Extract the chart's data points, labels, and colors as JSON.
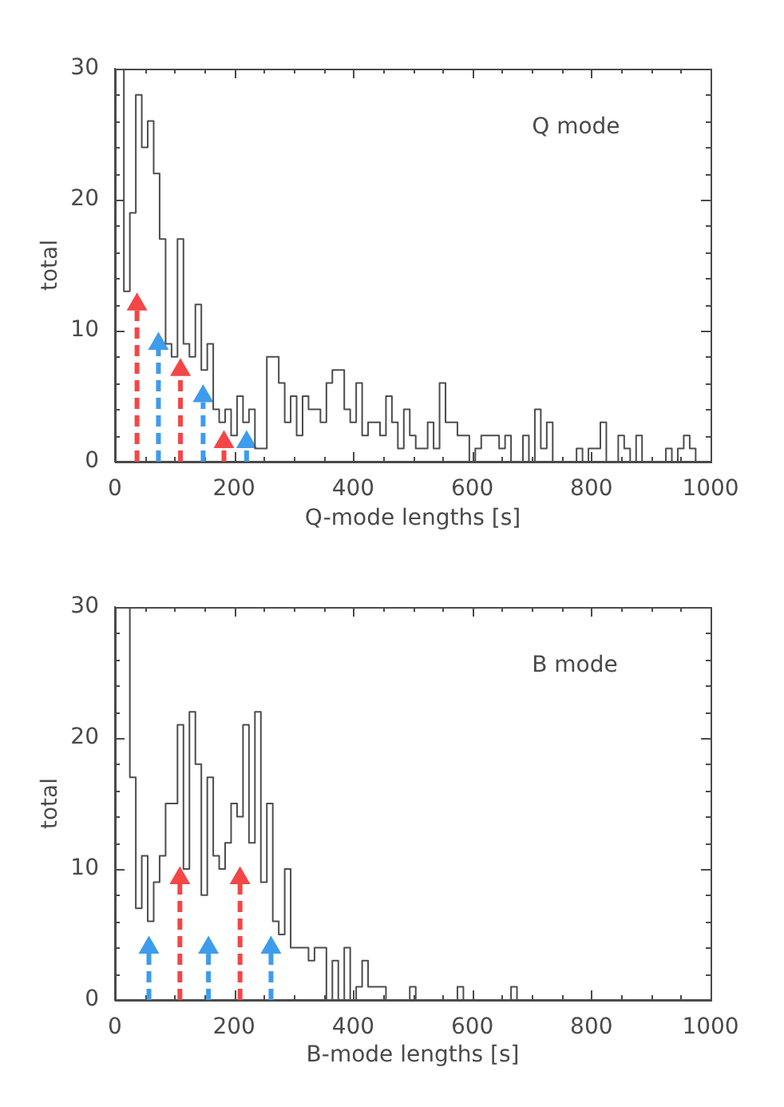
{
  "chart_data": [
    {
      "type": "step",
      "xlabel": "Q-mode lengths [s]",
      "ylabel": "total",
      "annotations": [
        "Q mode"
      ],
      "color": "#4d4d4d",
      "x": [
        10,
        20,
        30,
        40,
        50,
        60,
        70,
        80,
        90,
        100,
        110,
        120,
        130,
        140,
        150,
        160,
        170,
        180,
        190,
        200,
        210,
        220,
        230,
        240,
        250,
        260,
        270,
        280,
        290,
        300,
        310,
        320,
        330,
        340,
        350,
        360,
        370,
        380,
        390,
        400,
        410,
        420,
        430,
        440,
        450,
        460,
        470,
        480,
        490,
        500,
        510,
        520,
        530,
        540,
        550,
        560,
        570,
        580,
        590,
        600,
        610,
        620,
        630,
        640,
        650,
        660,
        670,
        680,
        690,
        700,
        710,
        720,
        730,
        740,
        750,
        760,
        770,
        780,
        790,
        800,
        810,
        820,
        830,
        840,
        850,
        860,
        870,
        880,
        890,
        900,
        910,
        920,
        930,
        940,
        950,
        960,
        970,
        980,
        990
      ],
      "values": [
        30,
        13,
        19,
        28,
        24,
        26,
        22,
        17,
        9,
        8,
        17,
        9,
        8,
        12,
        7,
        9,
        4,
        3,
        4,
        2,
        5,
        3,
        4,
        1,
        1,
        8,
        8,
        6,
        3,
        5,
        2,
        5,
        4,
        4,
        3,
        6,
        7,
        7,
        4,
        3,
        6,
        2,
        3,
        3,
        2,
        5,
        3,
        1,
        4,
        2,
        1,
        1,
        3,
        1,
        6,
        3,
        3,
        2,
        2,
        0,
        1,
        2,
        2,
        2,
        1,
        2,
        0,
        0,
        2,
        0,
        4,
        1,
        3,
        0,
        0,
        0,
        0,
        1,
        0,
        1,
        1,
        3,
        0,
        0,
        2,
        1,
        0,
        2,
        0,
        0,
        0,
        0,
        1,
        0,
        1,
        2,
        1,
        0,
        0
      ],
      "series": [
        {
          "type": "lollipop",
          "color": "#f44646",
          "marker": "triangle",
          "line_style": "dashed",
          "x": [
            37,
            110,
            183
          ],
          "values": [
            12,
            7,
            1.5
          ]
        },
        {
          "type": "lollipop",
          "color": "#3d9cec",
          "marker": "triangle",
          "line_style": "dashed",
          "x": [
            73,
            148,
            221
          ],
          "values": [
            9,
            5,
            1.5
          ]
        }
      ],
      "xlim": [
        0,
        1000
      ],
      "ylim": [
        0,
        30
      ],
      "xticks": [
        0,
        {
          "value": 50,
          "label": null
        },
        {
          "value": 100,
          "label": null
        },
        {
          "value": 150,
          "label": null
        },
        200,
        {
          "value": 250,
          "label": null
        },
        {
          "value": 300,
          "label": null
        },
        {
          "value": 350,
          "label": null
        },
        400,
        {
          "value": 450,
          "label": null
        },
        {
          "value": 500,
          "label": null
        },
        {
          "value": 550,
          "label": null
        },
        600,
        {
          "value": 650,
          "label": null
        },
        {
          "value": 700,
          "label": null
        },
        {
          "value": 750,
          "label": null
        },
        800,
        {
          "value": 850,
          "label": null
        },
        {
          "value": 900,
          "label": null
        },
        {
          "value": 950,
          "label": null
        },
        1000
      ],
      "yticks": [
        0,
        {
          "value": 2,
          "label": null
        },
        {
          "value": 4,
          "label": null
        },
        {
          "value": 6,
          "label": null
        },
        {
          "value": 8,
          "label": null
        },
        10,
        {
          "value": 12,
          "label": null
        },
        {
          "value": 14,
          "label": null
        },
        {
          "value": 16,
          "label": null
        },
        {
          "value": 18,
          "label": null
        },
        20,
        {
          "value": 22,
          "label": null
        },
        {
          "value": 24,
          "label": null
        },
        {
          "value": 26,
          "label": null
        },
        {
          "value": 28,
          "label": null
        },
        30
      ]
    },
    {
      "type": "step",
      "xlabel": "B-mode lengths [s]",
      "ylabel": "total",
      "annotations": [
        "B mode"
      ],
      "color": "#4d4d4d",
      "x": [
        10,
        20,
        30,
        40,
        50,
        60,
        70,
        80,
        90,
        100,
        110,
        120,
        130,
        140,
        150,
        160,
        170,
        180,
        190,
        200,
        210,
        220,
        230,
        240,
        250,
        260,
        270,
        280,
        290,
        300,
        310,
        320,
        330,
        340,
        350,
        360,
        370,
        380,
        390,
        400,
        410,
        420,
        430,
        440,
        450,
        460,
        470,
        480,
        490,
        500,
        510,
        520,
        530,
        540,
        550,
        560,
        570,
        580,
        590,
        600,
        610,
        620,
        630,
        640,
        650,
        660,
        670,
        680,
        690,
        700,
        710,
        720,
        730,
        740,
        750,
        760,
        770,
        780,
        790,
        800,
        810,
        820,
        830,
        840,
        850,
        860,
        870,
        880,
        890,
        900,
        910,
        920,
        930,
        940,
        950,
        960,
        970,
        980,
        990
      ],
      "values": [
        30,
        30,
        17,
        7,
        11,
        6,
        9,
        11,
        15,
        15,
        21,
        10,
        22,
        18,
        8,
        17,
        11,
        10,
        12,
        15,
        14,
        21,
        12,
        22,
        9,
        15,
        6,
        5,
        10,
        4,
        4,
        4,
        3,
        4,
        4,
        0,
        3,
        0,
        4,
        0,
        1,
        3,
        1,
        1,
        1,
        0,
        0,
        0,
        0,
        1,
        0,
        0,
        0,
        0,
        0,
        0,
        0,
        1,
        0,
        0,
        0,
        0,
        0,
        0,
        0,
        0,
        1,
        0,
        0,
        0,
        0,
        0,
        0,
        0,
        0,
        0,
        0,
        0,
        0,
        0,
        0,
        0,
        0,
        0,
        0,
        0,
        0,
        0,
        0,
        0,
        0,
        0,
        0,
        0,
        0,
        0,
        0,
        0,
        0
      ],
      "series": [
        {
          "type": "lollipop",
          "color": "#f44646",
          "marker": "triangle",
          "line_style": "dashed",
          "x": [
            109,
            210
          ],
          "values": [
            9.3,
            9.3
          ]
        },
        {
          "type": "lollipop",
          "color": "#3d9cec",
          "marker": "triangle",
          "line_style": "dashed",
          "x": [
            57,
            157,
            262
          ],
          "values": [
            4,
            4,
            4
          ]
        }
      ],
      "xlim": [
        0,
        1000
      ],
      "ylim": [
        0,
        30
      ],
      "xticks": [
        0,
        {
          "value": 50,
          "label": null
        },
        {
          "value": 100,
          "label": null
        },
        {
          "value": 150,
          "label": null
        },
        200,
        {
          "value": 250,
          "label": null
        },
        {
          "value": 300,
          "label": null
        },
        {
          "value": 350,
          "label": null
        },
        400,
        {
          "value": 450,
          "label": null
        },
        {
          "value": 500,
          "label": null
        },
        {
          "value": 550,
          "label": null
        },
        600,
        {
          "value": 650,
          "label": null
        },
        {
          "value": 700,
          "label": null
        },
        {
          "value": 750,
          "label": null
        },
        800,
        {
          "value": 850,
          "label": null
        },
        {
          "value": 900,
          "label": null
        },
        {
          "value": 950,
          "label": null
        },
        1000
      ],
      "yticks": [
        0,
        {
          "value": 2,
          "label": null
        },
        {
          "value": 4,
          "label": null
        },
        {
          "value": 6,
          "label": null
        },
        {
          "value": 8,
          "label": null
        },
        10,
        {
          "value": 12,
          "label": null
        },
        {
          "value": 14,
          "label": null
        },
        {
          "value": 16,
          "label": null
        },
        {
          "value": 18,
          "label": null
        },
        20,
        {
          "value": 22,
          "label": null
        },
        {
          "value": 24,
          "label": null
        },
        {
          "value": 26,
          "label": null
        },
        {
          "value": 28,
          "label": null
        },
        30
      ]
    }
  ]
}
